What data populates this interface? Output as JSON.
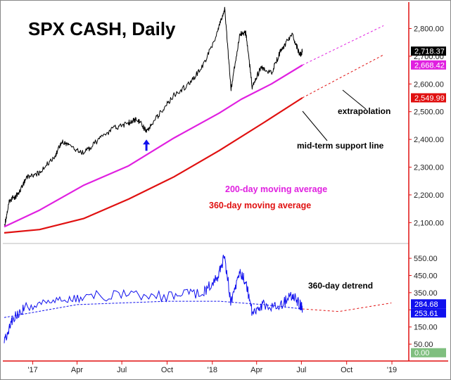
{
  "chart_data": {
    "type": "line",
    "title": "SPX CASH, Daily",
    "x_ticks": [
      "'17",
      "Apr",
      "Jul",
      "Oct",
      "'18",
      "Apr",
      "Jul",
      "Oct",
      "'19"
    ],
    "upper_panel": {
      "ylim": [
        2040,
        2890
      ],
      "y_ticks": [
        "2,100.00",
        "2,200.00",
        "2,300.00",
        "2,400.00",
        "2,500.00",
        "2,600.00",
        "2,700.00",
        "2,800.00"
      ],
      "y_tick_values": [
        2100,
        2200,
        2300,
        2400,
        2500,
        2600,
        2700,
        2800
      ],
      "price_badges": [
        {
          "label": "2,718.37",
          "value": 2718.37,
          "color": "#000000"
        },
        {
          "label": "2,668.42",
          "value": 2668.42,
          "color": "#e020e0"
        },
        {
          "label": "2,549.99",
          "value": 2549.99,
          "color": "#e01010"
        }
      ],
      "series": [
        {
          "label": "SPX",
          "color": "#000000",
          "x": [
            "2016-11-04",
            "2016-11-15",
            "2016-12-01",
            "2016-12-20",
            "2017-01-15",
            "2017-02-15",
            "2017-03-01",
            "2017-03-15",
            "2017-04-15",
            "2017-05-15",
            "2017-06-15",
            "2017-07-15",
            "2017-08-01",
            "2017-08-20",
            "2017-09-15",
            "2017-10-15",
            "2017-11-15",
            "2017-12-15",
            "2018-01-10",
            "2018-01-26",
            "2018-02-08",
            "2018-02-26",
            "2018-03-10",
            "2018-03-23",
            "2018-04-10",
            "2018-05-01",
            "2018-05-20",
            "2018-06-12",
            "2018-06-28",
            "2018-07-03"
          ],
          "y": [
            2085,
            2180,
            2200,
            2265,
            2280,
            2340,
            2395,
            2380,
            2350,
            2400,
            2440,
            2460,
            2475,
            2430,
            2490,
            2560,
            2600,
            2670,
            2780,
            2872,
            2580,
            2780,
            2785,
            2590,
            2660,
            2640,
            2720,
            2780,
            2705,
            2718
          ]
        },
        {
          "label": "200-day moving average",
          "color": "#e020e0",
          "x": [
            "2016-11-04",
            "2017-01-15",
            "2017-04-15",
            "2017-07-15",
            "2017-10-15",
            "2018-01-15",
            "2018-03-01",
            "2018-05-01",
            "2018-07-03"
          ],
          "y": [
            2085,
            2145,
            2235,
            2305,
            2405,
            2495,
            2545,
            2600,
            2668
          ]
        },
        {
          "label": "360-day moving average",
          "color": "#e01010",
          "x": [
            "2016-11-04",
            "2017-01-15",
            "2017-04-15",
            "2017-07-15",
            "2017-10-15",
            "2018-01-15",
            "2018-04-15",
            "2018-07-03"
          ],
          "y": [
            2063,
            2075,
            2115,
            2185,
            2265,
            2360,
            2460,
            2550
          ]
        }
      ],
      "extrapolations": [
        {
          "color": "#e020e0",
          "x": [
            "2018-07-03",
            "2018-12-15"
          ],
          "y": [
            2668,
            2810
          ]
        },
        {
          "color": "#e01010",
          "x": [
            "2018-07-03",
            "2018-12-15"
          ],
          "y": [
            2550,
            2705
          ]
        }
      ]
    },
    "lower_panel": {
      "ylim": [
        -40,
        620
      ],
      "y_ticks": [
        "50.00",
        "150.00",
        "250.00",
        "350.00",
        "450.00",
        "550.00"
      ],
      "y_tick_values": [
        50,
        150,
        250,
        350,
        450,
        550
      ],
      "value_badges": [
        {
          "label": "284.68",
          "value": 284.68,
          "color": "#1010ee"
        },
        {
          "label": "253.61",
          "value": 253.61,
          "color": "#1010ee"
        },
        {
          "label": "0.00",
          "value": 0.0,
          "color": "#7fbf7f"
        }
      ],
      "series": [
        {
          "label": "360-day detrend",
          "color": "#1010ee",
          "x": [
            "2016-11-04",
            "2016-11-20",
            "2016-12-15",
            "2017-02-15",
            "2017-04-15",
            "2017-07-15",
            "2017-10-15",
            "2017-12-15",
            "2018-01-10",
            "2018-01-26",
            "2018-02-08",
            "2018-02-26",
            "2018-03-10",
            "2018-03-23",
            "2018-04-15",
            "2018-05-20",
            "2018-06-12",
            "2018-06-28",
            "2018-07-03"
          ],
          "y": [
            70,
            190,
            260,
            310,
            330,
            335,
            325,
            355,
            430,
            560,
            290,
            470,
            420,
            230,
            280,
            270,
            340,
            280,
            255
          ]
        },
        {
          "label": "detrend cycle",
          "color": "#1010ee",
          "dashed": true,
          "x": [
            "2016-11-04",
            "2017-04-01",
            "2017-10-01",
            "2018-01-15",
            "2018-04-15",
            "2018-07-03"
          ],
          "y": [
            205,
            280,
            300,
            300,
            280,
            255
          ]
        }
      ],
      "extrapolations": [
        {
          "color": "#e01010",
          "x": [
            "2018-07-03",
            "2018-09-15",
            "2018-12-31"
          ],
          "y": [
            255,
            240,
            290
          ]
        }
      ]
    },
    "annotations": {
      "extrapolation": "extrapolation",
      "support": "mid-term support line",
      "ma200": "200-day moving average",
      "ma360": "360-day moving average",
      "detrend": "360-day detrend"
    },
    "colors": {
      "ma200": "#e020e0",
      "ma360": "#e01010",
      "detrend": "#1010ee",
      "arrow": "#1010ee",
      "axis": "#e01010"
    },
    "arrow_marker": {
      "date": "2017-08-20",
      "value": 2430
    }
  }
}
